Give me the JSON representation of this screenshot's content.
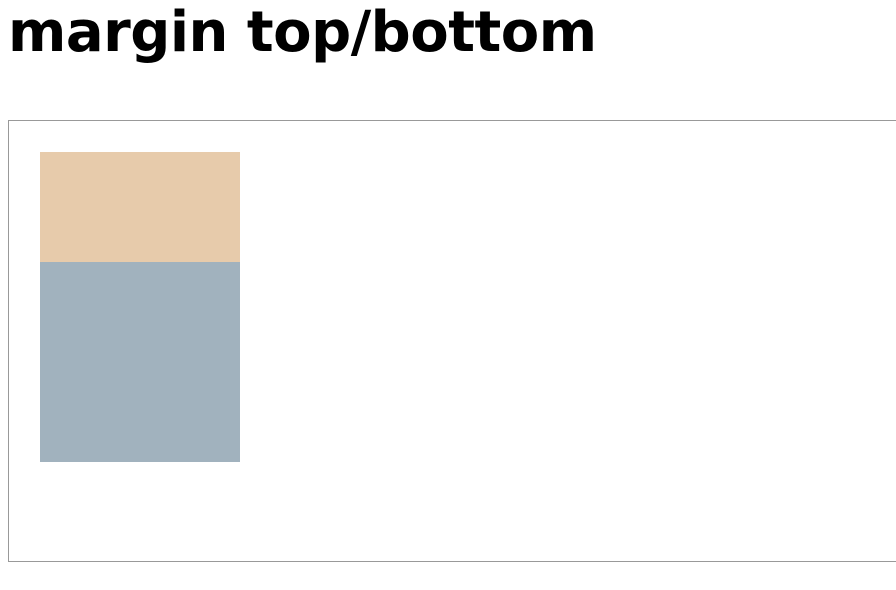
{
  "heading": {
    "title": "margin top/bottom"
  },
  "demo": {
    "boxes": [
      {
        "name": "top-box",
        "color": "#e7cbab"
      },
      {
        "name": "bottom-box",
        "color": "#a1b2be"
      }
    ],
    "border_color": "#999999"
  }
}
